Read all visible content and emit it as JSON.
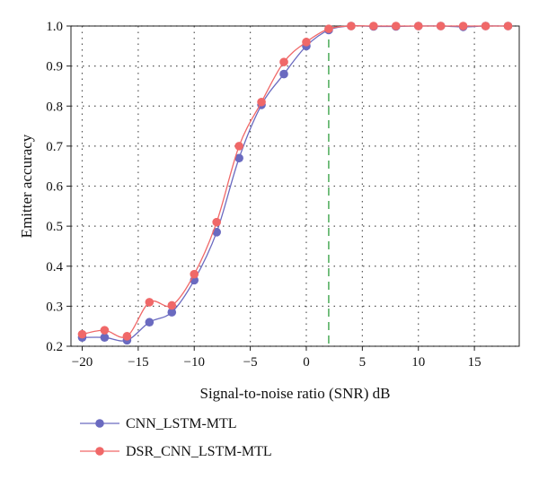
{
  "chart_data": {
    "type": "line",
    "xlabel": "Signal-to-noise ratio (SNR) dB",
    "ylabel": "Emitter accuracy",
    "xlim": [
      -21,
      19
    ],
    "ylim": [
      0.2,
      1.0
    ],
    "xticks": [
      -20,
      -15,
      -10,
      -5,
      0,
      5,
      10,
      15
    ],
    "yticks": [
      0.2,
      0.3,
      0.4,
      0.5,
      0.6,
      0.7,
      0.8,
      0.9,
      1.0
    ],
    "xtick_labels": [
      "−20",
      "−15",
      "−10",
      "−5",
      "0",
      "5",
      "10",
      "15"
    ],
    "ytick_labels": [
      "0.2",
      "0.3",
      "0.4",
      "0.5",
      "0.6",
      "0.7",
      "0.8",
      "0.9",
      "1.0"
    ],
    "grid": true,
    "reference_line": {
      "x": 2,
      "color": "#2e9e3e",
      "style": "dashed"
    },
    "legend_position": "below",
    "x": [
      -20,
      -18,
      -16,
      -14,
      -12,
      -10,
      -8,
      -6,
      -4,
      -2,
      0,
      2,
      4,
      6,
      8,
      10,
      12,
      14,
      16,
      18
    ],
    "series": [
      {
        "name": "CNN_LSTM-MTL",
        "color": "#6a6ac0",
        "values": [
          0.222,
          0.222,
          0.215,
          0.26,
          0.285,
          0.365,
          0.485,
          0.67,
          0.803,
          0.88,
          0.95,
          0.99,
          1.0,
          0.999,
          0.999,
          1.0,
          1.0,
          0.998,
          1.0,
          1.0
        ]
      },
      {
        "name": "DSR_CNN_LSTM-MTL",
        "color": "#f06868",
        "values": [
          0.23,
          0.24,
          0.225,
          0.31,
          0.302,
          0.38,
          0.51,
          0.7,
          0.81,
          0.91,
          0.96,
          0.993,
          1.0,
          1.0,
          1.0,
          1.0,
          1.0,
          1.0,
          1.0,
          1.0
        ]
      }
    ]
  }
}
